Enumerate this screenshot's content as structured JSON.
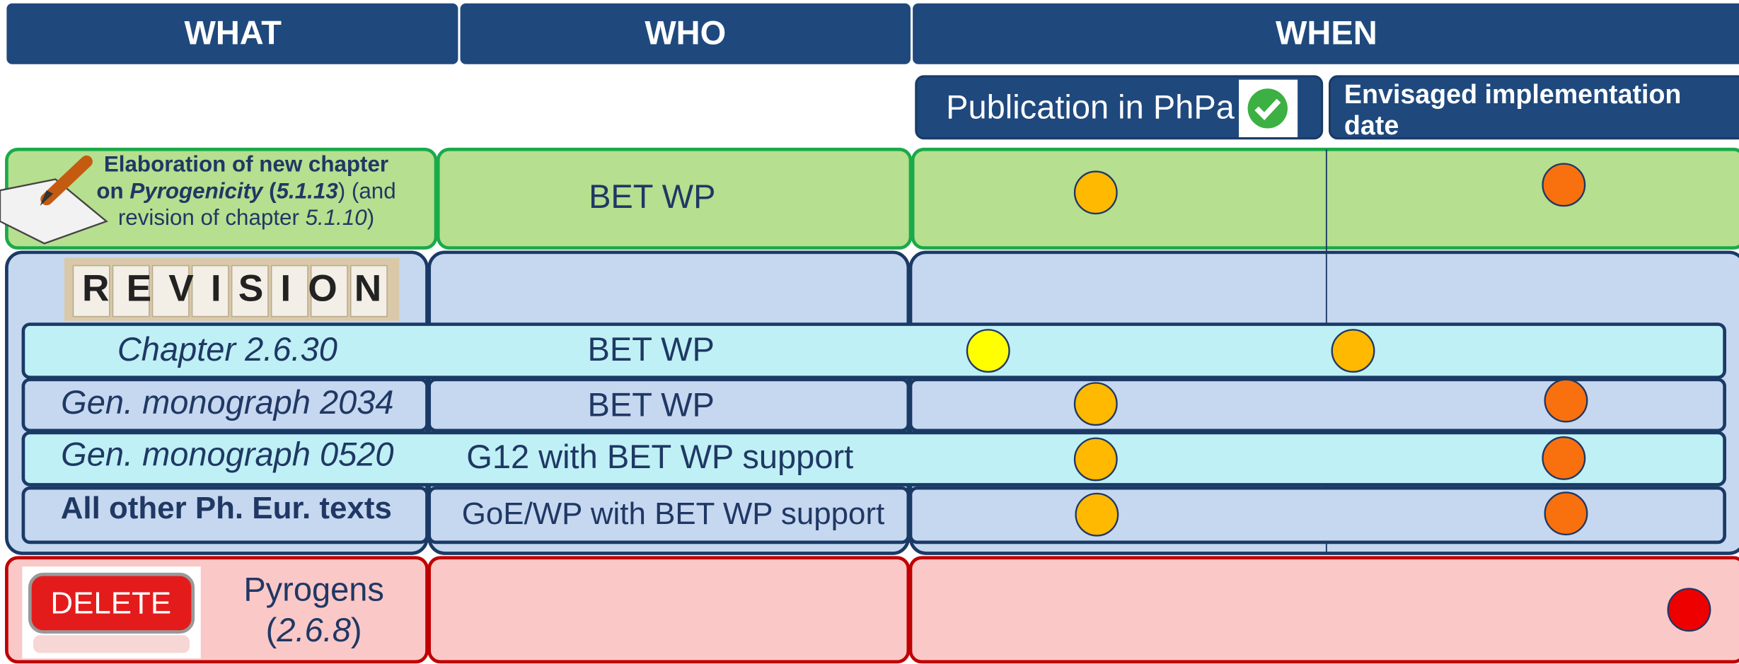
{
  "header": {
    "columns": [
      "WHAT",
      "WHO",
      "WHEN"
    ],
    "when_subcolumns": [
      "Publication in PhPa",
      "Envisaged implementation date"
    ]
  },
  "new_chapter": {
    "what_lines": [
      [
        "Elaboration of new chapter"
      ],
      [
        "on ",
        "Pyrogenicity",
        " (",
        "5.1.13",
        ") (and"
      ],
      [
        "revision of chapter ",
        "5.1.10",
        ")"
      ]
    ],
    "who": "BET WP"
  },
  "revision": {
    "image_text": "REVISION",
    "items": [
      {
        "what": "Chapter 2.6.30",
        "who": "BET WP"
      },
      {
        "what": "Gen. monograph 2034",
        "who": "BET WP"
      },
      {
        "what": "Gen. monograph 0520",
        "who": "G12 with BET WP support"
      },
      {
        "what": "All other Ph. Eur. texts",
        "who": "GoE/WP with BET WP support"
      }
    ]
  },
  "deletion": {
    "button": "DELETE",
    "what_lines": [
      [
        "Pyrogens"
      ],
      [
        "(",
        "2.6.8",
        ")"
      ]
    ]
  }
}
